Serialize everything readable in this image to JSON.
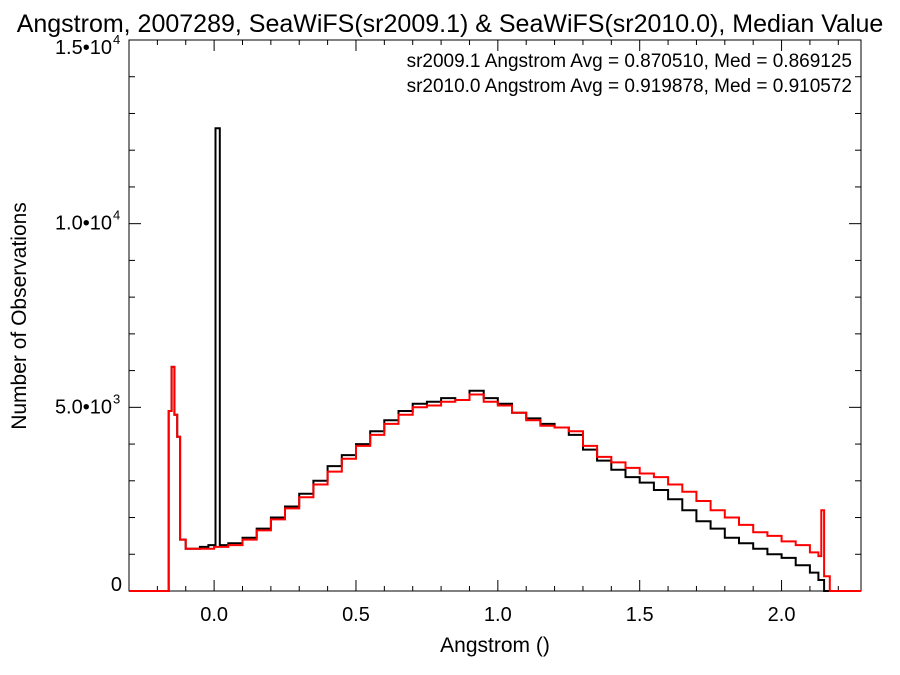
{
  "chart_data": {
    "type": "line",
    "title": "Angstrom, 2007289, SeaWiFS(sr2009.1) & SeaWiFS(sr2010.0), Median Value",
    "xlabel": "Angstrom ()",
    "ylabel": "Number of Observations",
    "xlim": [
      -0.3,
      2.28
    ],
    "ylim": [
      0,
      15000
    ],
    "x_ticks": [
      {
        "value": 0.0,
        "label": "0.0"
      },
      {
        "value": 0.5,
        "label": "0.5"
      },
      {
        "value": 1.0,
        "label": "1.0"
      },
      {
        "value": 1.5,
        "label": "1.5"
      },
      {
        "value": 2.0,
        "label": "2.0"
      }
    ],
    "y_ticks": [
      {
        "value": 0,
        "mantissa": "0",
        "exp": ""
      },
      {
        "value": 5000,
        "mantissa": "5.0•10",
        "exp": "3"
      },
      {
        "value": 10000,
        "mantissa": "1.0•10",
        "exp": "4"
      },
      {
        "value": 15000,
        "mantissa": "1.5•10",
        "exp": "4"
      }
    ],
    "annotations": [
      {
        "text": "sr2009.1 Angstrom Avg = 0.870510, Med = 0.869125",
        "color": "#000000"
      },
      {
        "text": "sr2010.0 Angstrom Avg = 0.919878, Med = 0.910572",
        "color": "#ff0000"
      }
    ],
    "series": [
      {
        "name": "sr2009.1",
        "color": "#000000",
        "x": [
          -0.3,
          -0.17,
          -0.16,
          -0.15,
          -0.14,
          -0.13,
          -0.12,
          -0.1,
          -0.05,
          -0.02,
          -0.005,
          0.005,
          0.02,
          0.05,
          0.1,
          0.15,
          0.2,
          0.25,
          0.3,
          0.35,
          0.4,
          0.45,
          0.5,
          0.55,
          0.6,
          0.65,
          0.7,
          0.75,
          0.8,
          0.85,
          0.9,
          0.95,
          1.0,
          1.05,
          1.1,
          1.15,
          1.2,
          1.25,
          1.3,
          1.35,
          1.4,
          1.45,
          1.5,
          1.55,
          1.6,
          1.65,
          1.7,
          1.75,
          1.8,
          1.85,
          1.9,
          1.95,
          2.0,
          2.05,
          2.1,
          2.13,
          2.15,
          2.17,
          2.28
        ],
        "y": [
          0,
          0,
          4900,
          6100,
          4800,
          4200,
          1400,
          1150,
          1200,
          1250,
          1250,
          12600,
          1250,
          1300,
          1450,
          1700,
          2000,
          2300,
          2650,
          3000,
          3400,
          3700,
          4000,
          4350,
          4650,
          4900,
          5100,
          5150,
          5250,
          5200,
          5450,
          5250,
          5100,
          4850,
          4700,
          4550,
          4450,
          4250,
          3850,
          3550,
          3300,
          3100,
          2950,
          2750,
          2500,
          2200,
          1900,
          1700,
          1450,
          1300,
          1150,
          1000,
          900,
          700,
          500,
          300,
          0,
          0,
          0
        ]
      },
      {
        "name": "sr2010.0",
        "color": "#ff0000",
        "x": [
          -0.3,
          -0.17,
          -0.16,
          -0.15,
          -0.14,
          -0.13,
          -0.12,
          -0.1,
          -0.05,
          0.0,
          0.05,
          0.1,
          0.15,
          0.2,
          0.25,
          0.3,
          0.35,
          0.4,
          0.45,
          0.5,
          0.55,
          0.6,
          0.65,
          0.7,
          0.75,
          0.8,
          0.85,
          0.9,
          0.95,
          1.0,
          1.05,
          1.1,
          1.15,
          1.2,
          1.25,
          1.3,
          1.35,
          1.4,
          1.45,
          1.5,
          1.55,
          1.6,
          1.65,
          1.7,
          1.75,
          1.8,
          1.85,
          1.9,
          1.95,
          2.0,
          2.05,
          2.1,
          2.13,
          2.14,
          2.15,
          2.17,
          2.28
        ],
        "y": [
          0,
          0,
          4900,
          6100,
          4800,
          4200,
          1400,
          1150,
          1150,
          1200,
          1250,
          1400,
          1650,
          1950,
          2250,
          2550,
          2900,
          3250,
          3600,
          3950,
          4250,
          4550,
          4800,
          5000,
          5050,
          5150,
          5200,
          5350,
          5150,
          5050,
          4850,
          4650,
          4500,
          4450,
          4350,
          3950,
          3650,
          3500,
          3350,
          3200,
          3100,
          2900,
          2700,
          2450,
          2200,
          2000,
          1800,
          1600,
          1500,
          1350,
          1250,
          1050,
          950,
          2200,
          400,
          0,
          0
        ]
      }
    ],
    "grid": false,
    "legend": "top-right"
  }
}
